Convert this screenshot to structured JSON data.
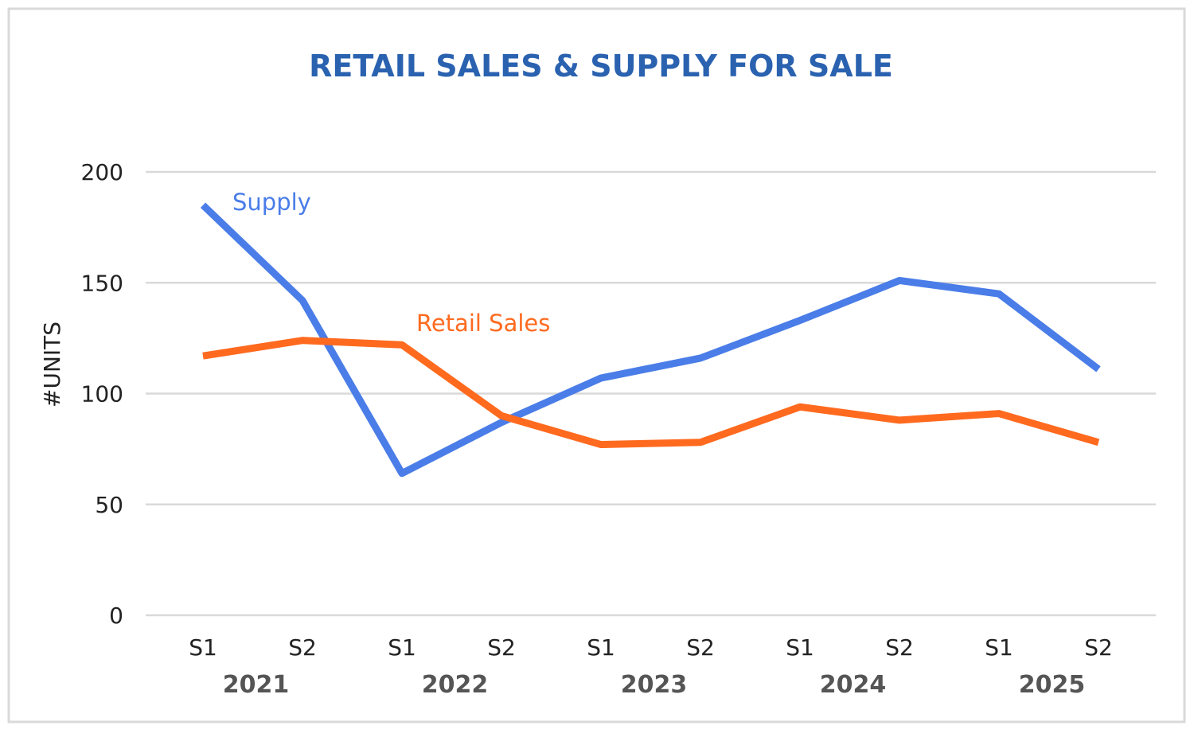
{
  "chart_data": {
    "type": "line",
    "title": "RETAIL SALES & SUPPLY FOR SALE",
    "ylabel": "#UNITS",
    "xlabel": "",
    "ylim": [
      0,
      200
    ],
    "yticks": [
      0,
      50,
      100,
      150,
      200
    ],
    "grid": true,
    "categories": [
      "S1",
      "S2",
      "S1",
      "S2",
      "S1",
      "S2",
      "S1",
      "S2",
      "S1",
      "S2"
    ],
    "groups": [
      "2021",
      "2022",
      "2023",
      "2024",
      "2025"
    ],
    "series": [
      {
        "name": "Supply",
        "color": "#4a7de8",
        "values": [
          185,
          142,
          64,
          87,
          107,
          116,
          133,
          151,
          145,
          111
        ]
      },
      {
        "name": "Retail Sales",
        "color": "#ff6a1f",
        "values": [
          117,
          124,
          122,
          90,
          77,
          78,
          94,
          88,
          91,
          78
        ]
      }
    ],
    "title_color": "#2a62b0",
    "legend": "inline labels"
  }
}
